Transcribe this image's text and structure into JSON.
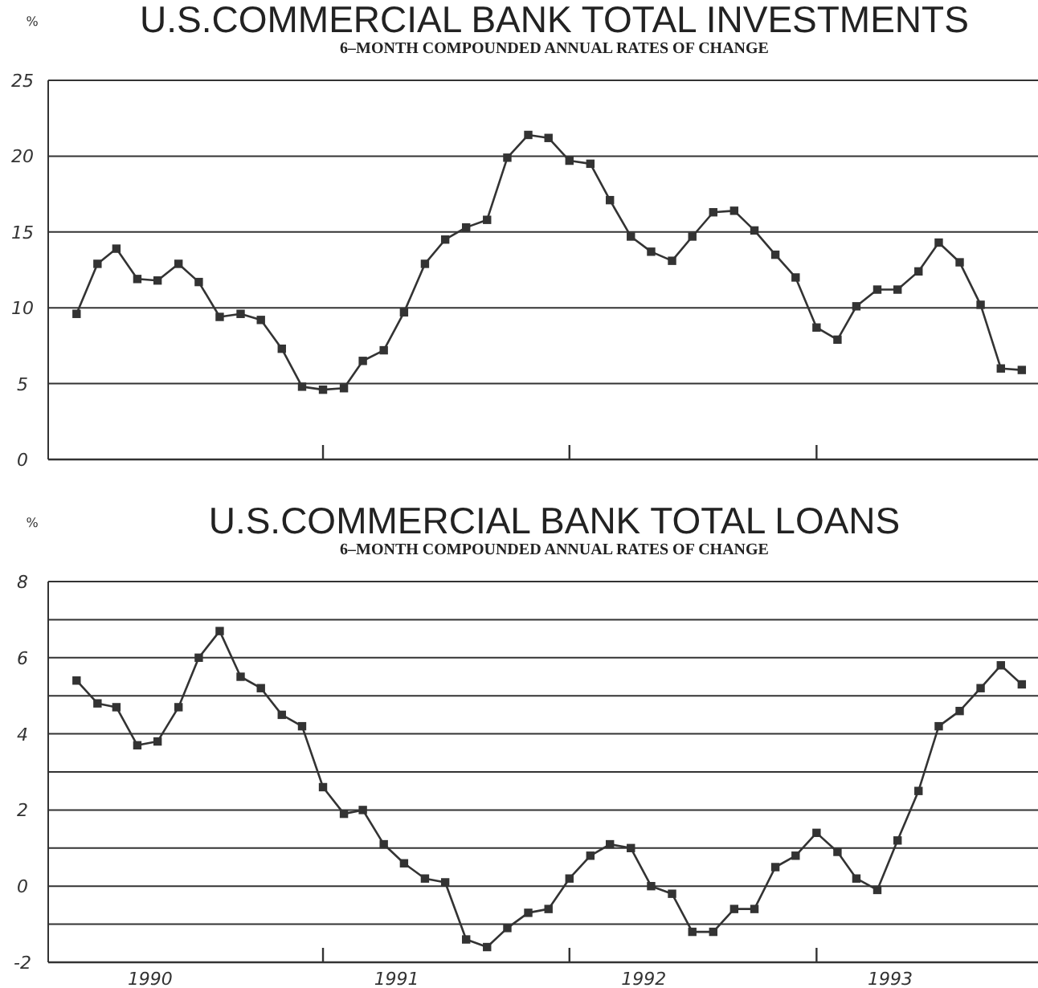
{
  "chart_data": [
    {
      "type": "line",
      "title": "U.S.COMMERCIAL BANK TOTAL INVESTMENTS",
      "subtitle": "6–MONTH COMPOUNDED ANNUAL RATES OF CHANGE",
      "ylabel": "%",
      "x": [
        "1990-01",
        "1990-02",
        "1990-03",
        "1990-04",
        "1990-05",
        "1990-06",
        "1990-07",
        "1990-08",
        "1990-09",
        "1990-10",
        "1990-11",
        "1990-12",
        "1991-01",
        "1991-02",
        "1991-03",
        "1991-04",
        "1991-05",
        "1991-06",
        "1991-07",
        "1991-08",
        "1991-09",
        "1991-10",
        "1991-11",
        "1991-12",
        "1992-01",
        "1992-02",
        "1992-03",
        "1992-04",
        "1992-05",
        "1992-06",
        "1992-07",
        "1992-08",
        "1992-09",
        "1992-10",
        "1992-11",
        "1992-12",
        "1993-01",
        "1993-02",
        "1993-03",
        "1993-04",
        "1993-05",
        "1993-06",
        "1993-07",
        "1993-08",
        "1993-09",
        "1993-10",
        "1993-11"
      ],
      "series": [
        {
          "color": "#333333",
          "values": [
            9.6,
            12.9,
            13.9,
            11.9,
            11.8,
            12.9,
            11.7,
            9.4,
            9.6,
            9.2,
            7.3,
            4.8,
            4.6,
            4.7,
            6.5,
            7.2,
            9.7,
            12.9,
            14.5,
            15.3,
            15.8,
            19.9,
            21.4,
            21.2,
            19.7,
            19.5,
            17.1,
            14.7,
            13.7,
            13.1,
            14.7,
            16.3,
            16.4,
            15.1,
            13.5,
            12.0,
            8.7,
            7.9,
            10.1,
            11.2,
            11.2,
            12.4,
            14.3,
            13.0,
            10.2,
            6.0,
            5.9
          ]
        }
      ],
      "xlim": [
        "1989-11-20",
        "1993-11-25"
      ],
      "xticks": [
        {
          "value": "1991-01",
          "label": null
        },
        {
          "value": "1992-01",
          "label": null
        },
        {
          "value": "1993-01",
          "label": null
        }
      ],
      "ylim": [
        0,
        25
      ],
      "yticks": [
        0,
        5,
        10,
        15,
        20,
        25
      ],
      "grid": "y",
      "marker": "square",
      "line_style": "solid",
      "tick_labels": "y"
    },
    {
      "type": "line",
      "title": "U.S.COMMERCIAL BANK TOTAL LOANS",
      "subtitle": "6–MONTH COMPOUNDED ANNUAL RATES OF CHANGE",
      "ylabel": "%",
      "x": [
        "1990-01",
        "1990-02",
        "1990-03",
        "1990-04",
        "1990-05",
        "1990-06",
        "1990-07",
        "1990-08",
        "1990-09",
        "1990-10",
        "1990-11",
        "1990-12",
        "1991-01",
        "1991-02",
        "1991-03",
        "1991-04",
        "1991-05",
        "1991-06",
        "1991-07",
        "1991-08",
        "1991-09",
        "1991-10",
        "1991-11",
        "1991-12",
        "1992-01",
        "1992-02",
        "1992-03",
        "1992-04",
        "1992-05",
        "1992-06",
        "1992-07",
        "1992-08",
        "1992-09",
        "1992-10",
        "1992-11",
        "1992-12",
        "1993-01",
        "1993-02",
        "1993-03",
        "1993-04",
        "1993-05",
        "1993-06",
        "1993-07",
        "1993-08",
        "1993-09",
        "1993-10",
        "1993-11"
      ],
      "series": [
        {
          "color": "#333333",
          "values": [
            5.4,
            4.8,
            4.7,
            3.7,
            3.8,
            4.7,
            6.0,
            6.7,
            5.5,
            5.2,
            4.5,
            4.2,
            2.6,
            1.9,
            2.0,
            1.1,
            0.6,
            0.2,
            0.1,
            -1.4,
            -1.6,
            -1.1,
            -0.7,
            -0.6,
            0.2,
            0.8,
            1.1,
            1.0,
            0.0,
            -0.2,
            -1.2,
            -1.2,
            -0.6,
            -0.6,
            0.5,
            0.8,
            1.4,
            0.9,
            0.2,
            -0.1,
            1.2,
            2.5,
            4.2,
            4.6,
            5.2,
            5.8,
            5.3
          ]
        }
      ],
      "xlim": [
        "1989-11-20",
        "1993-11-25"
      ],
      "xticks": [
        {
          "value": "1990-04-20",
          "label": "1990"
        },
        {
          "value": "1991-01",
          "label": null
        },
        {
          "value": "1991-04-20",
          "label": "1991"
        },
        {
          "value": "1992-01",
          "label": null
        },
        {
          "value": "1992-04-20",
          "label": "1992"
        },
        {
          "value": "1993-01",
          "label": null
        },
        {
          "value": "1993-04-20",
          "label": "1993"
        }
      ],
      "ylim": [
        -2,
        8
      ],
      "yticks": [
        -2,
        {
          "value": -1,
          "label": null
        },
        0,
        {
          "value": 1,
          "label": null
        },
        2,
        {
          "value": 3,
          "label": null
        },
        4,
        {
          "value": 5,
          "label": null
        },
        6,
        {
          "value": 7,
          "label": null
        },
        8
      ],
      "grid": "y",
      "marker": "square",
      "line_style": "solid"
    }
  ]
}
